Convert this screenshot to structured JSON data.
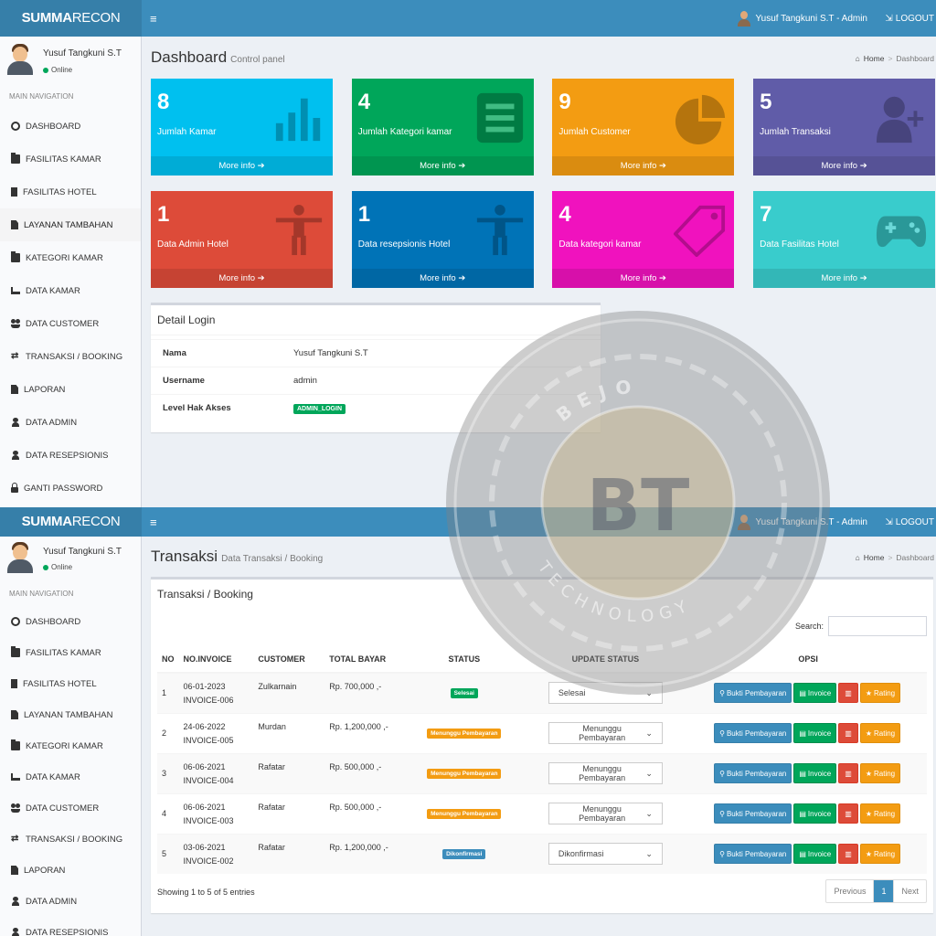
{
  "app": {
    "logo_bold": "SUMMA",
    "logo_rest": "RECON",
    "burger": "≡",
    "user_label": "Yusuf Tangkuni S.T - Admin",
    "logout": "LOGOUT"
  },
  "sidebar": {
    "user_name": "Yusuf Tangkuni S.T",
    "status": "Online",
    "header": "MAIN NAVIGATION",
    "items": [
      {
        "label": "DASHBOARD",
        "icon": "dashboard-icon"
      },
      {
        "label": "FASILITAS KAMAR",
        "icon": "folder-icon"
      },
      {
        "label": "FASILITAS HOTEL",
        "icon": "building-icon"
      },
      {
        "label": "LAYANAN TAMBAHAN",
        "icon": "document-icon"
      },
      {
        "label": "KATEGORI KAMAR",
        "icon": "folder-icon"
      },
      {
        "label": "DATA KAMAR",
        "icon": "bed-icon"
      },
      {
        "label": "DATA CUSTOMER",
        "icon": "users-icon"
      },
      {
        "label": "TRANSAKSI / BOOKING",
        "icon": "exchange-icon"
      },
      {
        "label": "LAPORAN",
        "icon": "document-icon"
      },
      {
        "label": "DATA ADMIN",
        "icon": "user-icon"
      },
      {
        "label": "DATA RESEPSIONIS",
        "icon": "user-icon"
      },
      {
        "label": "GANTI PASSWORD",
        "icon": "lock-icon"
      }
    ]
  },
  "dashboard": {
    "title": "Dashboard",
    "subtitle": "Control panel",
    "crumb_home": "Home",
    "crumb_current": "Dashboard",
    "tiles": [
      {
        "value": "8",
        "label": "Jumlah Kamar",
        "more": "More info ➔",
        "color": "#00c0ef",
        "icon": "bar-chart-icon"
      },
      {
        "value": "4",
        "label": "Jumlah Kategori kamar",
        "more": "More info ➔",
        "color": "#00a65a",
        "icon": "list-icon"
      },
      {
        "value": "9",
        "label": "Jumlah Customer",
        "more": "More info ➔",
        "color": "#f39c12",
        "icon": "pie-chart-icon"
      },
      {
        "value": "5",
        "label": "Jumlah Transaksi",
        "more": "More info ➔",
        "color": "#605ca8",
        "icon": "user-plus-icon"
      },
      {
        "value": "1",
        "label": "Data Admin Hotel",
        "more": "More info ➔",
        "color": "#dd4b39",
        "icon": "person-icon"
      },
      {
        "value": "1",
        "label": "Data resepsionis Hotel",
        "more": "More info ➔",
        "color": "#0073b7",
        "icon": "person-icon"
      },
      {
        "value": "4",
        "label": "Data kategori kamar",
        "more": "More info ➔",
        "color": "#f012be",
        "icon": "tag-icon"
      },
      {
        "value": "7",
        "label": "Data Fasilitas Hotel",
        "more": "More info ➔",
        "color": "#39cccc",
        "icon": "gamepad-icon"
      }
    ],
    "login_box": {
      "title": "Detail Login",
      "rows": [
        {
          "key": "Nama",
          "value": "Yusuf Tangkuni S.T"
        },
        {
          "key": "Username",
          "value": "admin"
        },
        {
          "key": "Level Hak Akses",
          "value": "ADMIN_LOGIN"
        }
      ]
    }
  },
  "transaksi": {
    "title": "Transaksi",
    "subtitle": "Data Transaksi / Booking",
    "crumb_home": "Home",
    "crumb_current": "Dashboard",
    "box_title": "Transaksi / Booking",
    "search_label": "Search:",
    "search_value": "",
    "columns": [
      "NO",
      "NO.INVOICE",
      "CUSTOMER",
      "TOTAL BAYAR",
      "STATUS",
      "UPDATE STATUS",
      "OPSI"
    ],
    "rows": [
      {
        "no": "1",
        "date": "06-01-2023",
        "invoice": "INVOICE-006",
        "customer": "Zulkarnain",
        "total": "Rp. 700,000 ,-",
        "status": "Selesai",
        "status_color": "#00a65a",
        "update": "Selesai"
      },
      {
        "no": "2",
        "date": "24-06-2022",
        "invoice": "INVOICE-005",
        "customer": "Murdan",
        "total": "Rp. 1,200,000 ,-",
        "status": "Menunggu Pembayaran",
        "status_color": "#f39c12",
        "update": "Menunggu Pembayaran"
      },
      {
        "no": "3",
        "date": "06-06-2021",
        "invoice": "INVOICE-004",
        "customer": "Rafatar",
        "total": "Rp. 500,000 ,-",
        "status": "Menunggu Pembayaran",
        "status_color": "#f39c12",
        "update": "Menunggu Pembayaran"
      },
      {
        "no": "4",
        "date": "06-06-2021",
        "invoice": "INVOICE-003",
        "customer": "Rafatar",
        "total": "Rp. 500,000 ,-",
        "status": "Menunggu Pembayaran",
        "status_color": "#f39c12",
        "update": "Menunggu Pembayaran"
      },
      {
        "no": "5",
        "date": "03-06-2021",
        "invoice": "INVOICE-002",
        "customer": "Rafatar",
        "total": "Rp. 1,200,000 ,-",
        "status": "Dikonfirmasi",
        "status_color": "#3c8dbc",
        "update": "Dikonfirmasi"
      }
    ],
    "buttons": {
      "bukti": "Bukti Pembayaran",
      "invoice": "Invoice",
      "rating": "Rating"
    },
    "info": "Showing 1 to 5 of 5 entries",
    "pager": {
      "prev": "Previous",
      "page": "1",
      "next": "Next"
    }
  },
  "watermark": {
    "top_text": "BEJO",
    "monogram": "BT",
    "bottom_text": "TECHNOLOGY"
  }
}
